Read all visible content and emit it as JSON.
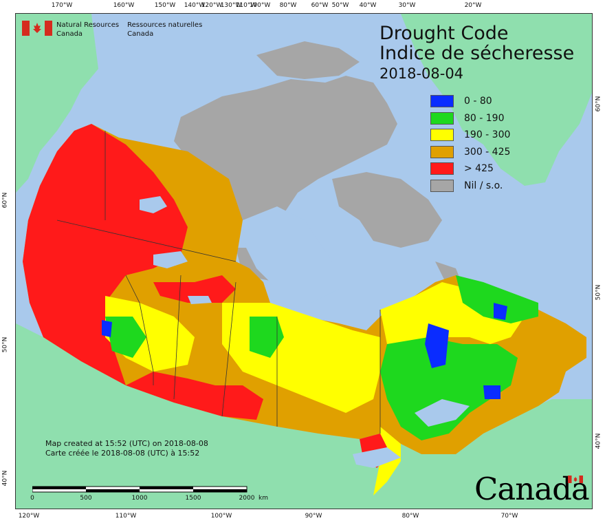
{
  "title": {
    "en": "Drought Code",
    "fr": "Indice de sécheresse"
  },
  "date": "2018-08-04",
  "legend": [
    {
      "label": "0 - 80",
      "color": "#0a2cff"
    },
    {
      "label": "80 - 190",
      "color": "#1ed81e"
    },
    {
      "label": "190 - 300",
      "color": "#ffff00"
    },
    {
      "label": "300 - 425",
      "color": "#e0a000"
    },
    {
      "label": "> 425",
      "color": "#ff1a1a"
    },
    {
      "label": "Nil / s.o.",
      "color": "#a6a6a6"
    }
  ],
  "agency": {
    "en_line1": "Natural Resources",
    "en_line2": "Canada",
    "fr_line1": "Ressources naturelles",
    "fr_line2": "Canada"
  },
  "credit": {
    "en": "Map created at 15:52 (UTC) on 2018-08-08",
    "fr": "Carte créée le 2018-08-08 (UTC) à 15:52"
  },
  "scale": {
    "labels": [
      "0",
      "500",
      "1000",
      "1500",
      "2000"
    ],
    "unit": "km"
  },
  "wordmark": "Canada",
  "graticule": {
    "top": [
      "170°W",
      "160°W",
      "150°W",
      "140°W",
      "130°W",
      "120°W",
      "100°W",
      "110°W",
      "80°W",
      "60°W",
      "50°W",
      "40°W",
      "30°W",
      "20°W"
    ],
    "bottom": [
      "120°W",
      "110°W",
      "100°W",
      "90°W",
      "80°W",
      "70°W"
    ],
    "left": [
      "60°N",
      "50°N",
      "40°N"
    ],
    "right": [
      "60°N",
      "50°N",
      "40°N"
    ]
  },
  "colors": {
    "ocean": "#a9c9ec",
    "land_other": "#8fdfae",
    "nodata": "#a6a6a6",
    "water": "#a9c9ec"
  }
}
